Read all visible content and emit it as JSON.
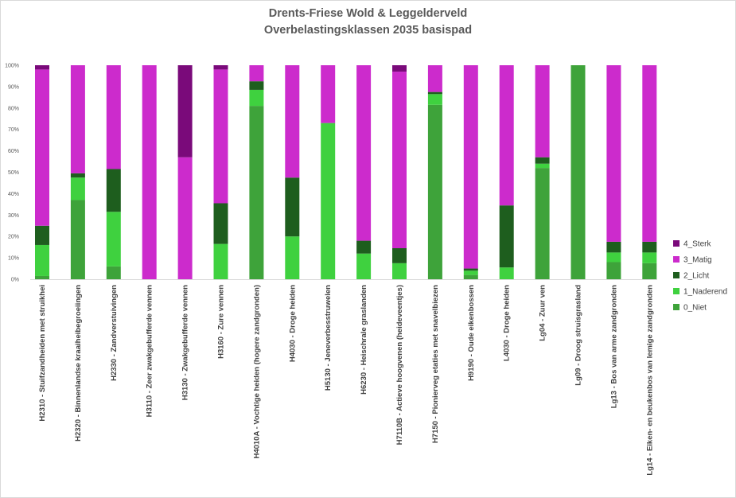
{
  "chart_data": {
    "type": "bar",
    "stacked": true,
    "percent": true,
    "title": "Drents-Friese Wold & Leggelderveld",
    "subtitle": "Overbelastingsklassen 2035 basispad",
    "xlabel": "",
    "ylabel": "",
    "ylim": [
      0,
      100
    ],
    "yticks": [
      "0%",
      "10%",
      "20%",
      "30%",
      "40%",
      "50%",
      "60%",
      "70%",
      "80%",
      "90%",
      "100%"
    ],
    "grid": false,
    "legend_position": "right",
    "categories": [
      "H2310 - Stuifzandheiden met struikhei",
      "H2320 - Binnenlandse kraaiheibegroeiingen",
      "H2330 - Zandverstuivingen",
      "H3110 - Zeer zwakgebufferde vennen",
      "H3130 - Zwakgebufferde vennen",
      "H3160 - Zure vennen",
      "H4010A - Vochtige heiden (hogere zandgronden)",
      "H4030 - Droge heiden",
      "H5130 - Jeneverbesstruwelen",
      "H6230 - Heischrale graslanden",
      "H7110B - Actieve hoogvenen (heideveentjes)",
      "H7150 - Pionierveg etaties met snavelbiezen",
      "H9190 - Oude eikenbossen",
      "L4030 - Droge heiden",
      "Lg04 - Zuur ven",
      "Lg09 - Droog struisgrasland",
      "Lg13 - Bos van arme zandgronden",
      "Lg14 - Eiken- en beukenbos van lemige zandgronden"
    ],
    "series": [
      {
        "name": "0_Niet",
        "color": "#3ea33a",
        "values": [
          1.5,
          37,
          6,
          0,
          0,
          0,
          81,
          0,
          0,
          0,
          0,
          81.5,
          2,
          0,
          52,
          100,
          8,
          7.5
        ]
      },
      {
        "name": "1_Naderend",
        "color": "#3fd13f",
        "values": [
          14.5,
          10.5,
          25.5,
          0,
          0,
          16.5,
          7.5,
          20,
          73,
          12,
          7.5,
          5,
          2,
          5.5,
          2,
          0,
          4.5,
          5
        ]
      },
      {
        "name": "2_Licht",
        "color": "#1e5e1e",
        "values": [
          9,
          2,
          20,
          0,
          0,
          19,
          4,
          27.5,
          0,
          6,
          7,
          1,
          1,
          29,
          3,
          0,
          5,
          5
        ]
      },
      {
        "name": "3_Matig",
        "color": "#cc2bcc",
        "values": [
          73,
          50.5,
          48.5,
          100,
          57,
          62.5,
          7.5,
          52.5,
          27,
          82,
          82.5,
          12.5,
          95,
          65.5,
          43,
          0,
          82.5,
          82.5
        ]
      },
      {
        "name": "4_Sterk",
        "color": "#7a0a7a",
        "values": [
          2,
          0,
          0,
          0,
          43,
          2,
          0,
          0,
          0,
          0,
          3,
          0,
          0,
          0,
          0,
          0,
          0,
          0
        ]
      }
    ]
  }
}
